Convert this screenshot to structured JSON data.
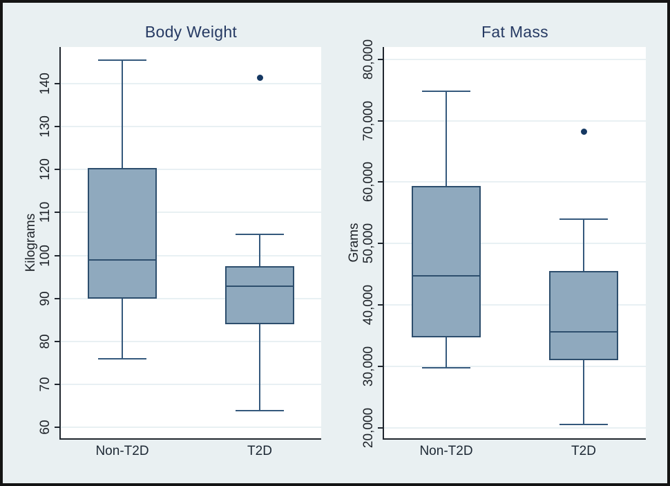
{
  "figure": {
    "kind": "stata-style box plot figure",
    "groups": [
      "Non-T2D",
      "T2D"
    ]
  },
  "colors": {
    "background": "#e9f0f2",
    "frame": "#141414",
    "plot_background": "#ffffff",
    "gridline": "#e8f0f3",
    "axis": "#20262e",
    "title_text": "#263a63",
    "tick_text": "#1d2228",
    "box_fill": "#8fa9be",
    "box_border": "#2d4e6d",
    "whisker": "#34587c",
    "outlier": "#153862"
  },
  "chart_data": [
    {
      "type": "box",
      "title": "Body Weight",
      "ylabel": "Kilograms",
      "xlabel": "",
      "categories": [
        "Non-T2D",
        "T2D"
      ],
      "ylim": [
        57.5,
        148.5
      ],
      "yticks": [
        60,
        70,
        80,
        90,
        100,
        110,
        120,
        130,
        140
      ],
      "ytick_labels": [
        "60",
        "70",
        "80",
        "90",
        "100",
        "110",
        "120",
        "130",
        "140"
      ],
      "grid": true,
      "legend": "none",
      "series": [
        {
          "category": "Non-T2D",
          "whisker_low": 76,
          "q1": 90,
          "median": 99,
          "q3": 120.3,
          "whisker_high": 145.5,
          "outliers": []
        },
        {
          "category": "T2D",
          "whisker_low": 64,
          "q1": 84,
          "median": 92.8,
          "q3": 97.5,
          "whisker_high": 105,
          "outliers": [
            141.5
          ]
        }
      ]
    },
    {
      "type": "box",
      "title": "Fat Mass",
      "ylabel": "Grams",
      "xlabel": "",
      "categories": [
        "Non-T2D",
        "T2D"
      ],
      "ylim": [
        18300,
        82000
      ],
      "yticks": [
        20000,
        30000,
        40000,
        50000,
        60000,
        70000,
        80000
      ],
      "ytick_labels": [
        "20,000",
        "30,000",
        "40,000",
        "50,000",
        "60,000",
        "70,000",
        "80,000"
      ],
      "grid": true,
      "legend": "none",
      "series": [
        {
          "category": "Non-T2D",
          "whisker_low": 29800,
          "q1": 34700,
          "median": 44800,
          "q3": 59400,
          "whisker_high": 74800,
          "outliers": []
        },
        {
          "category": "T2D",
          "whisker_low": 20600,
          "q1": 31000,
          "median": 35600,
          "q3": 45500,
          "whisker_high": 54000,
          "outliers": [
            68300
          ]
        }
      ]
    }
  ]
}
